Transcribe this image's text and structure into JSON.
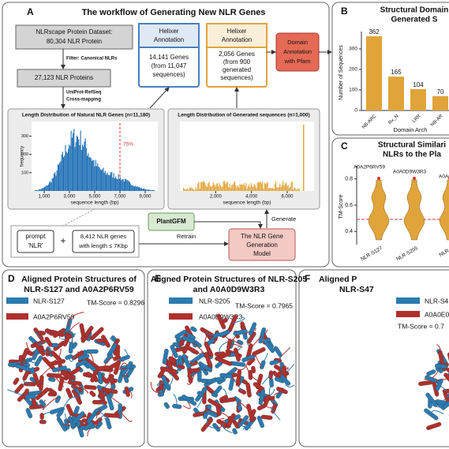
{
  "panel_a": {
    "letter": "A",
    "title": "The workflow of  Generating New NLR Genes",
    "dataset": [
      "NLRscape Protein Dataset:",
      "80,304 NLR Protein"
    ],
    "filter": "Filter: Canonical NLRs",
    "proteins": "27,123 NLR Proteins",
    "mapping": [
      "UniProt-RefSeq",
      "Cross-mapping"
    ],
    "helixer_natural": {
      "title": [
        "Helixer",
        "Annotation"
      ],
      "body": [
        "14,141 Genes",
        "(from 11,047",
        "sequences)"
      ]
    },
    "helixer_generated": {
      "title": [
        "Helixer",
        "Annotation"
      ],
      "body": [
        "2,056 Genes",
        "(from 900",
        "generated",
        "sequences)"
      ]
    },
    "domain": [
      "Domain",
      "Annotation",
      "with Pfam"
    ],
    "natural_hist": {
      "title": "Length Distribution of  Natural NLR Genes (n=11,180)",
      "ylabel": "frequency",
      "xlabel": "sequence length (bp)",
      "marker": "75%",
      "xlim": [
        0,
        10000
      ],
      "xticks": [
        {
          "value": 1000,
          "label": "1,000"
        },
        {
          "value": 3000,
          "label": "3,000"
        },
        {
          "value": 5000,
          "label": "5,000"
        },
        {
          "value": 7000,
          "label": "7,000"
        },
        {
          "value": 9000,
          "label": "9,000"
        }
      ],
      "ylim": [
        0,
        380
      ],
      "yticks": [
        100,
        200,
        300
      ]
    },
    "generated_hist": {
      "title": "Length Distribution of  Generated sequences (n=1,000)",
      "xlabel": "sequence length (bp)",
      "xlim": [
        0,
        7500
      ],
      "xticks": [
        {
          "value": 2000,
          "label": "2,000"
        },
        {
          "value": 4000,
          "label": "4,000"
        },
        {
          "value": 6000,
          "label": "6,000"
        }
      ]
    },
    "prompt": [
      "prompt",
      "'NLR'"
    ],
    "plus": "+",
    "genes": [
      "8,412 NLR genes",
      "with length ≤ 7Kbp"
    ],
    "plantgfm": "PlantGFM",
    "retrain": "Retrain",
    "generate": "Generate",
    "model": [
      "The NLR Gene",
      "Generation",
      "Model"
    ]
  },
  "panel_b": {
    "letter": "B",
    "title": [
      "Structural Domain",
      "Generated S"
    ],
    "ylabel": "Number of Sequences",
    "xlabel": "Domain Arch",
    "categories": [
      "NB-ARC",
      "Rx_N",
      "LRR",
      "NB-AR"
    ],
    "values": [
      362,
      165,
      104,
      70
    ],
    "color": "#e0a43a",
    "ylim": [
      0,
      400
    ],
    "yticks": [
      0,
      100,
      200,
      300
    ]
  },
  "panel_c": {
    "letter": "C",
    "title": [
      "Structural Similari",
      "NLRs to the Pla"
    ],
    "ylabel": "TM-Score",
    "ylim": [
      0.3,
      0.9
    ],
    "yticks": [
      0.4,
      0.6,
      0.8
    ],
    "labels": [
      "A0A2P6RV59",
      "A0A0D9W3R3",
      "A0A0"
    ],
    "categories": [
      "NLR-S127",
      "NLR-S205",
      "NLR-S"
    ]
  },
  "panel_d": {
    "letter": "D",
    "title": [
      "Aligned Protein Structures of",
      "NLR-S127 and A0A2P6RV59"
    ],
    "legend": [
      "NLR-S127",
      "A0A2P6RV59"
    ],
    "score": "TM-Score = 0.8296"
  },
  "panel_e": {
    "letter": "E",
    "title": [
      "Aligned Protein Structures of NLR-S205",
      "and A0A0D9W3R3"
    ],
    "legend": [
      "NLR-S205",
      "A0A0D9W3R3"
    ],
    "score": "TM-Score = 0.7965"
  },
  "panel_f": {
    "letter": "F",
    "title": [
      "Aligned P",
      "NLR-S47"
    ],
    "legend": [
      "NLR-S4",
      "A0A0E0"
    ],
    "score": "TM-Score = 0.7"
  }
}
